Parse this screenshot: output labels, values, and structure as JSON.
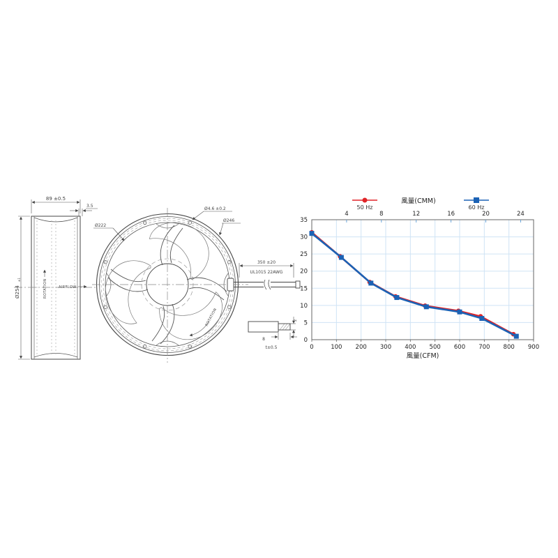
{
  "drawing": {
    "side_view": {
      "dim_width": "89 ±0.5",
      "dim_flange": "3.5",
      "dim_diameter": "Ø254",
      "dim_diameter_tol": "±1",
      "label_rotation": "ROTATION",
      "label_airflow": "AIRFLOW"
    },
    "front_view": {
      "dim_inner": "Ø222",
      "dim_hole": "Ø4.6 ±0.2",
      "dim_outer": "Ø246",
      "label_rotation": "ROTATION"
    },
    "lead_wire": {
      "dim_length": "350 ±20",
      "label_spec": "UL1015  22AWG"
    },
    "wire_detail": {
      "dim_strip": "8",
      "dim_thickness": "t±0.5",
      "dim_end": "2"
    }
  },
  "chart_data": {
    "type": "line",
    "x_bottom": {
      "label": "風量(CFM)",
      "ticks": [
        0,
        100,
        200,
        300,
        400,
        500,
        600,
        700,
        800,
        900
      ],
      "range": [
        0,
        900
      ]
    },
    "x_top": {
      "label": "風量(CMM)",
      "ticks": [
        4,
        8,
        12,
        16,
        20,
        24
      ],
      "cfm_per_unit": 35.31
    },
    "y": {
      "ticks": [
        0,
        5,
        10,
        15,
        20,
        25,
        30,
        35
      ],
      "range": [
        0,
        35
      ]
    },
    "grid": {
      "color": "#cfe3f5",
      "x_step": 100,
      "y_step": 5
    },
    "legend_position": "top",
    "series": [
      {
        "name": "50 Hz",
        "color": "#e02428",
        "marker": "circle",
        "points": [
          [
            0,
            31.3
          ],
          [
            115,
            24.3
          ],
          [
            235,
            16.8
          ],
          [
            340,
            12.6
          ],
          [
            460,
            9.9
          ],
          [
            595,
            8.4
          ],
          [
            685,
            6.8
          ],
          [
            818,
            1.6
          ]
        ]
      },
      {
        "name": "60 Hz",
        "color": "#1b62b5",
        "marker": "square",
        "points": [
          [
            0,
            31.0
          ],
          [
            120,
            24.0
          ],
          [
            240,
            16.5
          ],
          [
            345,
            12.3
          ],
          [
            465,
            9.6
          ],
          [
            600,
            8.1
          ],
          [
            690,
            6.2
          ],
          [
            830,
            1.0
          ]
        ]
      }
    ]
  }
}
